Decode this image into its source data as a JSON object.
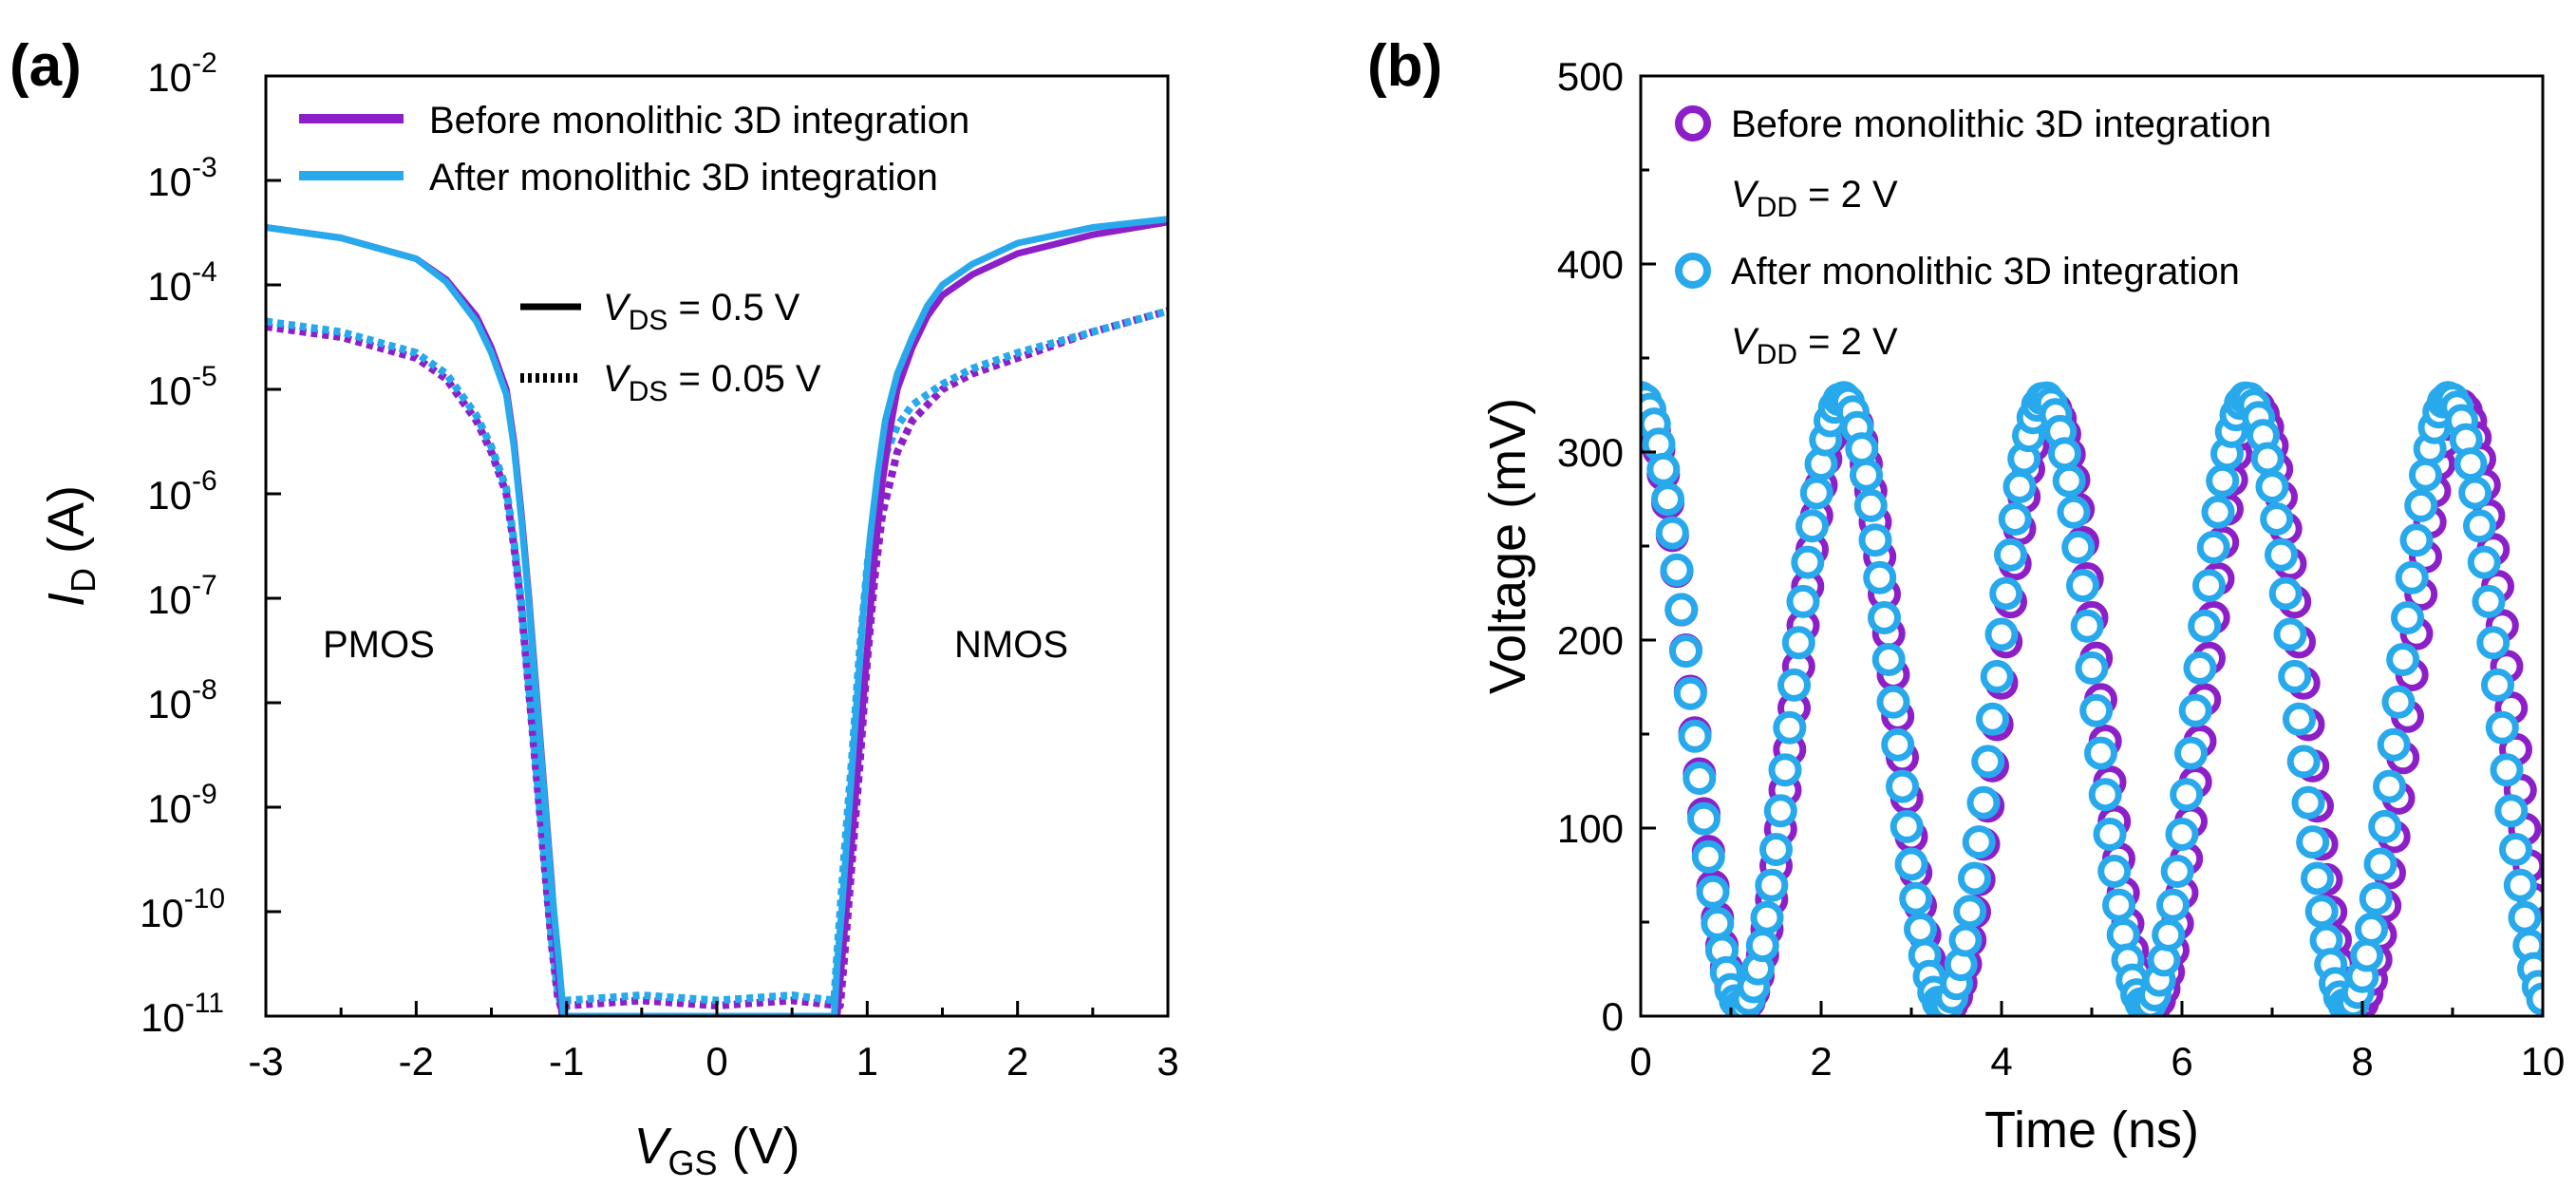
{
  "colors": {
    "before": "#8d1fc9",
    "after": "#27a9ec"
  },
  "chart_data": [
    {
      "type": "line",
      "panel_label": "(a)",
      "xlabel": {
        "main": "V",
        "sub": "GS",
        "unit": " (V)"
      },
      "ylabel": {
        "main": "I",
        "sub": "D",
        "unit": " (A)"
      },
      "xlim": [
        -3,
        3
      ],
      "ylim_log10": [
        -11,
        -2
      ],
      "y_scale": "log",
      "x_ticks": [
        "-3",
        "-2",
        "-1",
        "0",
        "1",
        "2",
        "3"
      ],
      "y_ticks": [
        {
          "base": "10",
          "exp": "-11"
        },
        {
          "base": "10",
          "exp": "-10"
        },
        {
          "base": "10",
          "exp": "-9"
        },
        {
          "base": "10",
          "exp": "-8"
        },
        {
          "base": "10",
          "exp": "-7"
        },
        {
          "base": "10",
          "exp": "-6"
        },
        {
          "base": "10",
          "exp": "-5"
        },
        {
          "base": "10",
          "exp": "-4"
        },
        {
          "base": "10",
          "exp": "-3"
        },
        {
          "base": "10",
          "exp": "-2"
        }
      ],
      "legend": [
        {
          "label": "Before monolithic 3D integration",
          "series": "before"
        },
        {
          "label": "After monolithic 3D integration",
          "series": "after"
        }
      ],
      "vds_legend": [
        {
          "style": "solid",
          "main": "V",
          "sub": "DS",
          "rest": " = 0.5 V"
        },
        {
          "style": "dotted",
          "main": "V",
          "sub": "DS",
          "rest": " = 0.05 V"
        }
      ],
      "annotations": [
        {
          "text": "PMOS"
        },
        {
          "text": "NMOS"
        }
      ],
      "series": [
        {
          "name": "before",
          "vds": 0.5,
          "x": [
            -3,
            -2.5,
            -2,
            -1.8,
            -1.6,
            -1.5,
            -1.4,
            -1.35,
            -1.3,
            -1.25,
            -1.2,
            -1.15,
            -1.1,
            -1.06,
            -1.03,
            -1.0,
            -0.5,
            0,
            0.5,
            0.8,
            0.83,
            0.86,
            0.9,
            0.95,
            1.0,
            1.05,
            1.1,
            1.15,
            1.2,
            1.3,
            1.4,
            1.5,
            1.7,
            2.0,
            2.5,
            3.0
          ],
          "log_y": [
            -3.45,
            -3.55,
            -3.75,
            -3.95,
            -4.3,
            -4.6,
            -5.0,
            -5.5,
            -6.2,
            -7.0,
            -7.9,
            -8.8,
            -9.7,
            -10.5,
            -11.0,
            -11.0,
            -11.0,
            -11.0,
            -11.0,
            -11.0,
            -10.5,
            -10.0,
            -9.3,
            -8.4,
            -7.5,
            -6.6,
            -5.9,
            -5.4,
            -5.0,
            -4.6,
            -4.3,
            -4.1,
            -3.9,
            -3.7,
            -3.52,
            -3.4
          ]
        },
        {
          "name": "after",
          "vds": 0.5,
          "x": [
            -3,
            -2.5,
            -2,
            -1.8,
            -1.6,
            -1.5,
            -1.4,
            -1.35,
            -1.3,
            -1.25,
            -1.2,
            -1.15,
            -1.1,
            -1.05,
            -1.02,
            -1.0,
            -0.5,
            0,
            0.5,
            0.78,
            0.8,
            0.83,
            0.87,
            0.92,
            0.97,
            1.02,
            1.07,
            1.12,
            1.2,
            1.3,
            1.4,
            1.5,
            1.7,
            2.0,
            2.5,
            3.0
          ],
          "log_y": [
            -3.45,
            -3.55,
            -3.75,
            -3.97,
            -4.35,
            -4.65,
            -5.05,
            -5.55,
            -6.25,
            -7.05,
            -7.95,
            -8.85,
            -9.75,
            -10.5,
            -11.0,
            -11.0,
            -11.0,
            -11.0,
            -11.0,
            -11.0,
            -10.5,
            -10.0,
            -9.2,
            -8.2,
            -7.2,
            -6.4,
            -5.8,
            -5.3,
            -4.85,
            -4.5,
            -4.2,
            -4.0,
            -3.8,
            -3.6,
            -3.45,
            -3.37
          ]
        },
        {
          "name": "before",
          "vds": 0.05,
          "x": [
            -3,
            -2.5,
            -2,
            -1.8,
            -1.6,
            -1.5,
            -1.4,
            -1.35,
            -1.3,
            -1.25,
            -1.2,
            -1.15,
            -1.1,
            -1.06,
            -1.02,
            -1.0,
            -0.5,
            0,
            0.5,
            0.82,
            0.85,
            0.9,
            0.95,
            1.0,
            1.05,
            1.1,
            1.2,
            1.3,
            1.5,
            1.7,
            2.0,
            2.5,
            3.0
          ],
          "log_y": [
            -4.4,
            -4.5,
            -4.7,
            -4.9,
            -5.3,
            -5.6,
            -6.0,
            -6.5,
            -7.1,
            -7.9,
            -8.7,
            -9.5,
            -10.3,
            -10.8,
            -11.0,
            -10.9,
            -10.85,
            -10.9,
            -10.85,
            -10.9,
            -10.4,
            -9.5,
            -8.6,
            -7.6,
            -6.8,
            -6.2,
            -5.6,
            -5.3,
            -5.0,
            -4.85,
            -4.7,
            -4.45,
            -4.25
          ]
        },
        {
          "name": "after",
          "vds": 0.05,
          "x": [
            -3,
            -2.5,
            -2,
            -1.8,
            -1.6,
            -1.5,
            -1.4,
            -1.35,
            -1.3,
            -1.25,
            -1.2,
            -1.15,
            -1.1,
            -1.06,
            -1.02,
            -1.0,
            -0.5,
            0,
            0.5,
            0.78,
            0.8,
            0.85,
            0.9,
            0.95,
            1.0,
            1.05,
            1.1,
            1.2,
            1.3,
            1.5,
            1.7,
            2.0,
            2.5,
            3.0
          ],
          "log_y": [
            -4.35,
            -4.45,
            -4.65,
            -4.85,
            -5.25,
            -5.55,
            -5.95,
            -6.45,
            -7.05,
            -7.85,
            -8.65,
            -9.45,
            -10.25,
            -10.75,
            -11.0,
            -10.85,
            -10.8,
            -10.85,
            -10.8,
            -10.85,
            -10.4,
            -9.4,
            -8.5,
            -7.5,
            -6.7,
            -6.1,
            -5.7,
            -5.35,
            -5.15,
            -4.95,
            -4.8,
            -4.65,
            -4.45,
            -4.25
          ]
        }
      ]
    },
    {
      "type": "scatter",
      "panel_label": "(b)",
      "xlabel": "Time (ns)",
      "ylabel": "Voltage (mV)",
      "xlim": [
        0,
        10
      ],
      "ylim": [
        0,
        500
      ],
      "x_ticks": [
        "0",
        "2",
        "4",
        "6",
        "8",
        "10"
      ],
      "y_ticks": [
        "0",
        "100",
        "200",
        "300",
        "400",
        "500"
      ],
      "legend": [
        {
          "label": "Before monolithic 3D integration",
          "series": "before",
          "vdd": {
            "main": "V",
            "sub": "DD",
            "rest": " = 2 V"
          }
        },
        {
          "label": "After monolithic 3D integration",
          "series": "after",
          "vdd": {
            "main": "V",
            "sub": "DD",
            "rest": " = 2 V"
          }
        }
      ],
      "series": [
        {
          "name": "before",
          "amplitude_mV": 160,
          "offset_mV": 165,
          "period_ns": 2.27,
          "first_peak_ns": 0.0,
          "t_step_ns": 0.05,
          "t_range": [
            0,
            10
          ]
        },
        {
          "name": "after",
          "amplitude_mV": 162,
          "offset_mV": 167,
          "period_ns": 2.24,
          "first_peak_ns": 0.0,
          "t_step_ns": 0.05,
          "t_range": [
            0,
            10
          ]
        }
      ]
    }
  ]
}
